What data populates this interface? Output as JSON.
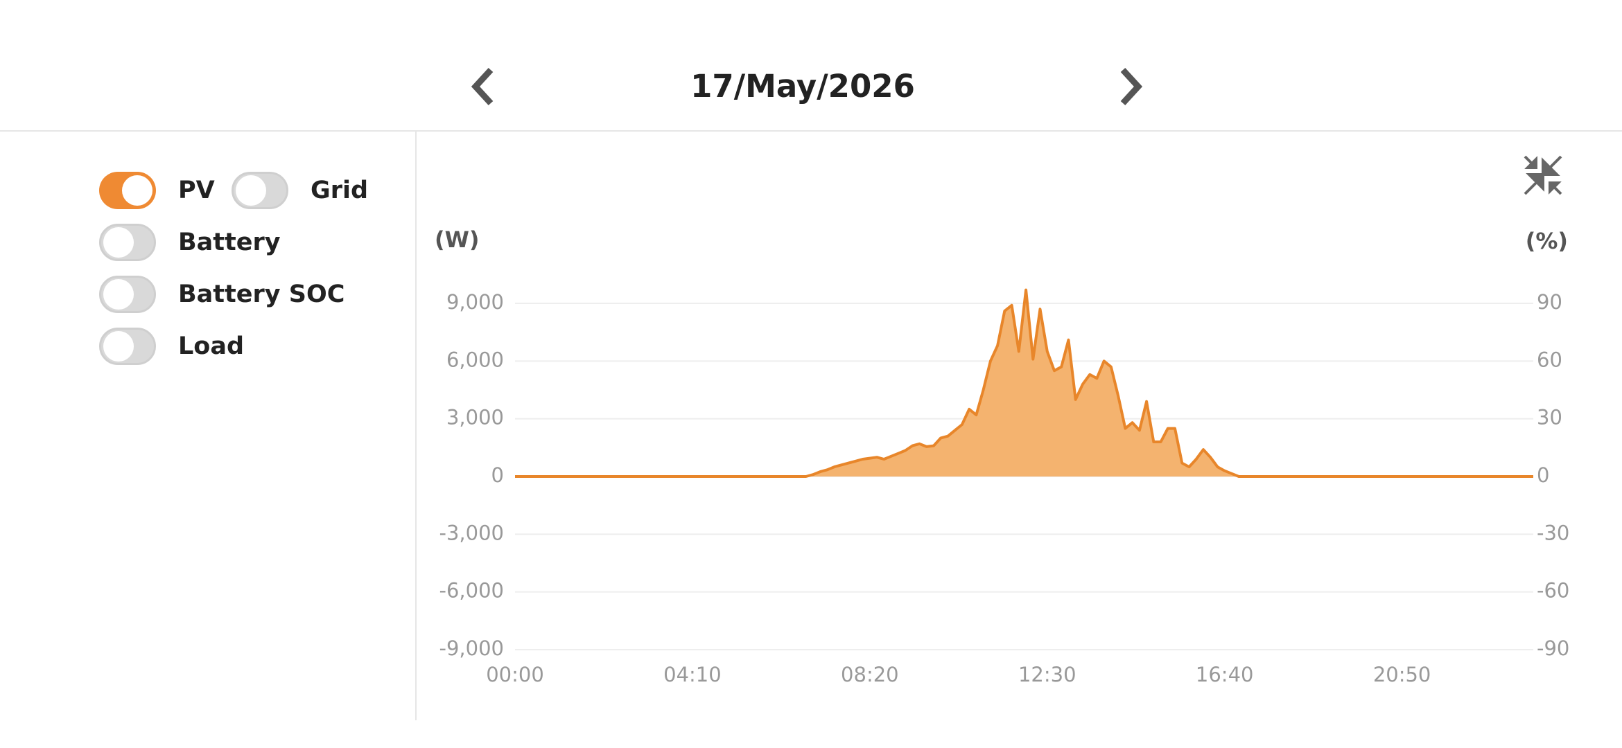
{
  "header": {
    "date": "17/May/2026"
  },
  "toggles": [
    {
      "label": "Grid",
      "on": false
    },
    {
      "label": "Battery",
      "on": false
    },
    {
      "label": "Battery SOC",
      "on": false
    },
    {
      "label": "Load",
      "on": false
    }
  ],
  "chart_data": {
    "type": "area",
    "y_label": "(W)",
    "y2_label": "(%)",
    "x": [
      "00:00",
      "06:50",
      "07:00",
      "07:10",
      "07:20",
      "07:30",
      "07:40",
      "07:50",
      "08:00",
      "08:10",
      "08:20",
      "08:30",
      "08:40",
      "08:50",
      "09:00",
      "09:10",
      "09:20",
      "09:30",
      "09:40",
      "09:50",
      "10:00",
      "10:10",
      "10:20",
      "10:30",
      "10:40",
      "10:50",
      "11:00",
      "11:10",
      "11:20",
      "11:30",
      "11:40",
      "11:50",
      "12:00",
      "12:10",
      "12:20",
      "12:30",
      "12:40",
      "12:50",
      "13:00",
      "13:10",
      "13:20",
      "13:30",
      "13:40",
      "13:50",
      "14:00",
      "14:10",
      "14:20",
      "14:30",
      "14:40",
      "14:50",
      "15:00",
      "15:10",
      "15:20",
      "15:30",
      "15:40",
      "15:50",
      "16:00",
      "16:10",
      "16:20",
      "16:30",
      "16:40",
      "16:50",
      "17:00",
      "23:55"
    ],
    "series": [
      {
        "name": "PV",
        "color": "#e8862a",
        "fill": "#f4b36f",
        "visible": true,
        "values": [
          0,
          0,
          100,
          250,
          350,
          500,
          600,
          700,
          800,
          900,
          950,
          1000,
          900,
          1050,
          1200,
          1350,
          1600,
          1700,
          1550,
          1600,
          2000,
          2100,
          2400,
          2700,
          3500,
          3200,
          4500,
          6000,
          6800,
          8600,
          8900,
          6500,
          9700,
          6100,
          8700,
          6500,
          5500,
          5700,
          7100,
          4000,
          4800,
          5300,
          5100,
          6000,
          5700,
          4200,
          2500,
          2800,
          2400,
          3900,
          1800,
          1800,
          2500,
          2500,
          700,
          500,
          900,
          1400,
          1000,
          500,
          300,
          150,
          0,
          0
        ]
      }
    ],
    "xlim": [
      "00:00",
      "23:55"
    ],
    "xticks": [
      "00:00",
      "04:10",
      "08:20",
      "12:30",
      "16:40",
      "20:50"
    ],
    "ylim": [
      -9000,
      9000
    ],
    "yticks": [
      {
        "value": 9000,
        "label": "9,000"
      },
      {
        "value": 6000,
        "label": "6,000"
      },
      {
        "value": 3000,
        "label": "3,000"
      },
      0,
      {
        "value": -3000,
        "label": "-3,000"
      },
      {
        "value": -6000,
        "label": "-6,000"
      },
      {
        "value": -9000,
        "label": "-9,000"
      }
    ],
    "y2lim": [
      -90,
      90
    ],
    "y2ticks": [
      90,
      60,
      30,
      0,
      -30,
      -60,
      -90
    ],
    "grid": true
  }
}
